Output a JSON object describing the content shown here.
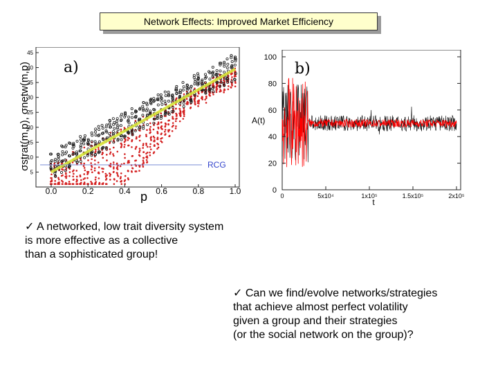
{
  "slide": {
    "title": "Network Effects: Improved Market Efficiency"
  },
  "figure_a": {
    "panel_label": "a)",
    "y_ticks": [
      "5",
      "10",
      "15",
      "20",
      "25",
      "30",
      "35",
      "40",
      "45"
    ],
    "x_ticks": [
      "0.0",
      "0.2",
      "0.4",
      "0.6",
      "0.8",
      "1.0"
    ],
    "xlabel": "p",
    "ylabel": "σstrat(m,p), σnetw(m,p)",
    "legend_label": "RCG",
    "colors": {
      "scatter_red": "#d42020",
      "scatter_black": "#1a1a1a",
      "trend_yellow": "#d9e63a"
    }
  },
  "figure_b": {
    "panel_label": "b)",
    "y_ticks": [
      "0",
      "20",
      "40",
      "60",
      "80",
      "100"
    ],
    "x_ticks": [
      "0",
      "5x10⁴",
      "1x10⁵",
      "1.5x10⁵",
      "2x10⁵"
    ],
    "xlabel": "t",
    "ylabel": "A(t)",
    "colors": {
      "series_red": "#ff0000",
      "series_black": "#000000"
    }
  },
  "bullets": [
    {
      "check": "✓",
      "lines": [
        "A networked, low trait diversity system",
        "is more effective as a collective",
        "than a sophisticated group!"
      ]
    },
    {
      "check": "✓",
      "lines": [
        "Can we find/evolve networks/strategies",
        "that achieve almost perfect volatility",
        "given a group and their strategies",
        "(or the social network on the group)?"
      ]
    }
  ]
}
